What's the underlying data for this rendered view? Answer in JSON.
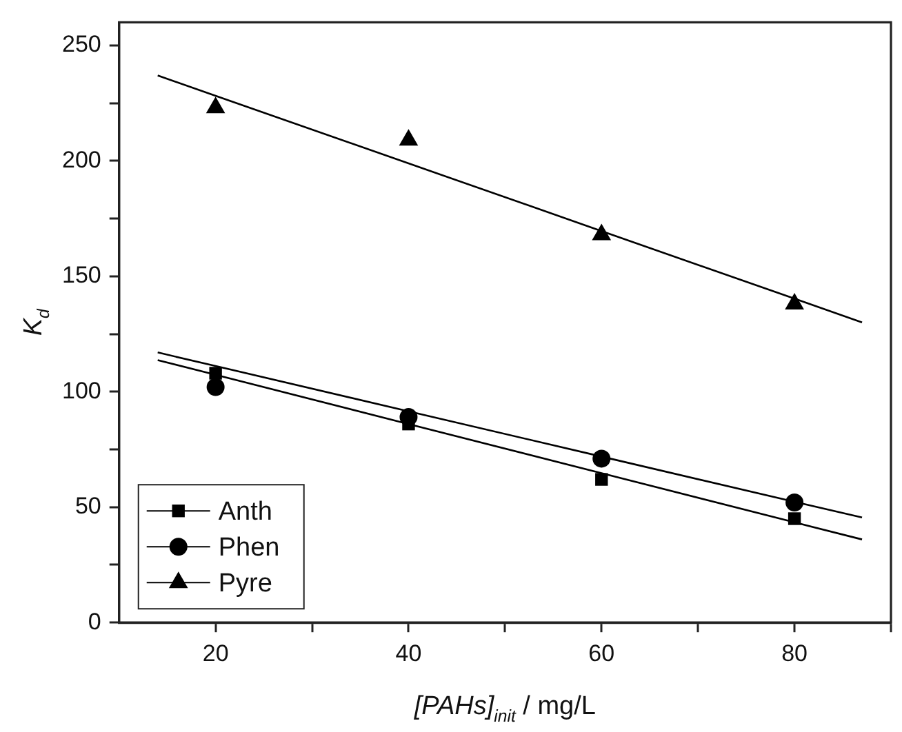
{
  "chart_data": {
    "type": "scatter",
    "xlabel": "[PAHs]$_{init}$ / mg/L",
    "ylabel": "K$_{d}$",
    "xlim": [
      10,
      90
    ],
    "xticks": [
      20,
      {
        "value": 30,
        "label": null
      },
      40,
      {
        "value": 50,
        "label": null
      },
      60,
      {
        "value": 70,
        "label": null
      },
      80,
      {
        "value": 90,
        "label": null
      }
    ],
    "ylim": [
      0,
      260
    ],
    "yticks": [
      0,
      {
        "value": 25,
        "label": null
      },
      50,
      {
        "value": 75,
        "label": null
      },
      100,
      {
        "value": 125,
        "label": null
      },
      150,
      {
        "value": 175,
        "label": null
      },
      200,
      {
        "value": 225,
        "label": null
      },
      250
    ],
    "grid": false,
    "legend": "bottom left",
    "x": [
      14,
      20,
      40,
      60,
      80,
      87
    ],
    "series": [
      {
        "name": "Anth",
        "color": "#000000",
        "marker": "square",
        "values": [
          null,
          108,
          86,
          62,
          45,
          null
        ]
      },
      {
        "name": "Phen",
        "color": "#000000",
        "marker": "circle",
        "values": [
          null,
          102,
          89,
          71,
          52,
          null
        ]
      },
      {
        "name": "Pyre",
        "color": "#000000",
        "marker": "triangle",
        "values": [
          null,
          223,
          209,
          168,
          138,
          null
        ]
      },
      {
        "type": "line",
        "color": "#000000",
        "marker": "none",
        "line_style": "solid",
        "values": [
          113.7,
          107.3,
          86,
          64.7,
          43.4,
          36
        ]
      },
      {
        "type": "line",
        "color": "#000000",
        "marker": "none",
        "line_style": "solid",
        "values": [
          117,
          111.1,
          91.5,
          71.9,
          52.3,
          45.5
        ]
      },
      {
        "type": "line",
        "color": "#000000",
        "marker": "none",
        "line_style": "solid",
        "values": [
          237,
          228.2,
          198.9,
          169.6,
          140.3,
          130
        ]
      }
    ]
  }
}
